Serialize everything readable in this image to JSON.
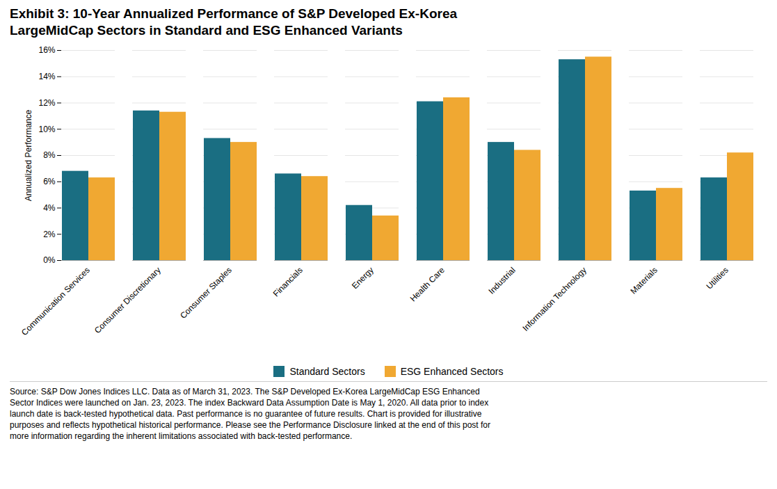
{
  "chart_data": {
    "type": "bar",
    "title": "Exhibit 3: 10-Year Annualized Performance of S&P Developed Ex-Korea",
    "subtitle": "LargeMidCap Sectors in Standard and ESG Enhanced Variants",
    "categories": [
      "Communication Services",
      "Consumer Discretionary",
      "Consumer Staples",
      "Financials",
      "Energy",
      "Health Care",
      "Industrial",
      "Information Technology",
      "Materials",
      "Utilities"
    ],
    "series": [
      {
        "name": "Standard Sectors",
        "color": "#1a6e82",
        "values": [
          6.8,
          11.4,
          9.3,
          6.6,
          4.2,
          12.1,
          9.0,
          15.3,
          5.3,
          6.3
        ]
      },
      {
        "name": "ESG Enhanced Sectors",
        "color": "#f0a832",
        "values": [
          6.3,
          11.3,
          9.0,
          6.4,
          3.4,
          12.4,
          8.4,
          15.5,
          5.5,
          8.2
        ]
      }
    ],
    "ylabel": "Annualized Performance",
    "ylim": [
      0,
      16
    ],
    "yticks": [
      {
        "value": 0,
        "label": "0%"
      },
      {
        "value": 2,
        "label": "2%"
      },
      {
        "value": 4,
        "label": "4%"
      },
      {
        "value": 6,
        "label": "6%"
      },
      {
        "value": 8,
        "label": "8%"
      },
      {
        "value": 10,
        "label": "10%"
      },
      {
        "value": 12,
        "label": "12%"
      },
      {
        "value": 14,
        "label": "14%"
      },
      {
        "value": 16,
        "label": "16%"
      }
    ],
    "grid": true,
    "legend": "bottom",
    "annotations": [
      "Source: S&P Dow Jones Indices LLC. Data as of March 31, 2023. The S&P Developed Ex-Korea LargeMidCap ESG Enhanced",
      "Sector Indices were launched on Jan. 23, 2023. The index Backward Data Assumption Date is May 1, 2020. All data prior to index",
      "launch date is back-tested hypothetical data. Past performance is no guarantee of future results. Chart is provided for illustrative",
      "purposes and reflects hypothetical historical performance. Please see the Performance Disclosure linked at the end of this post for",
      "more information regarding the inherent limitations associated with back-tested performance."
    ]
  }
}
